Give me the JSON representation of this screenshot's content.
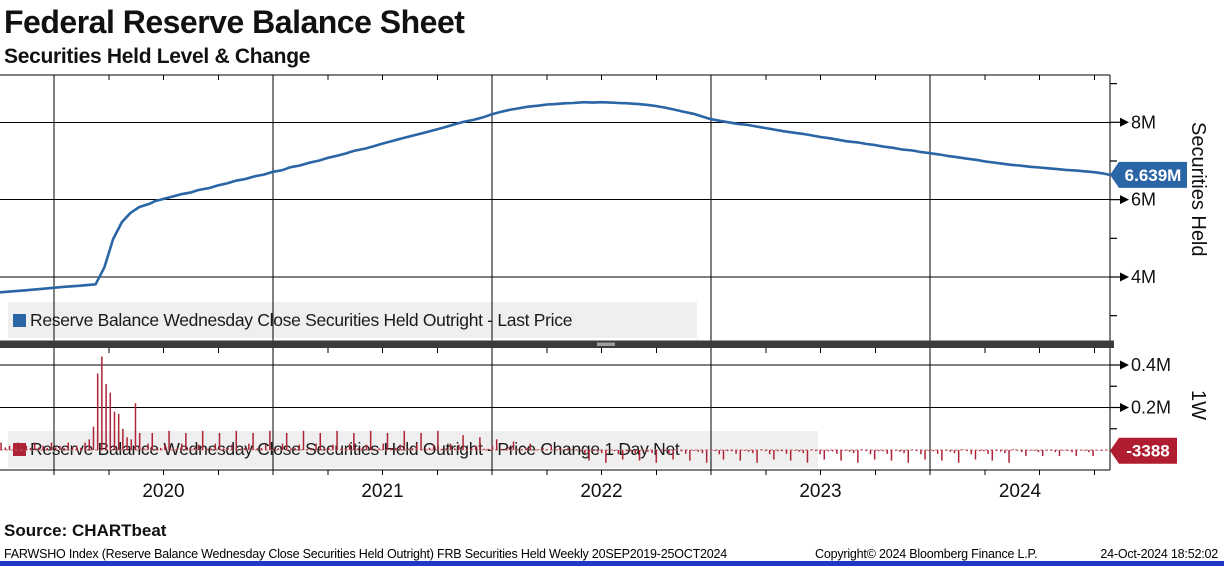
{
  "header": {
    "title": "Federal Reserve Balance Sheet",
    "subtitle": "Securities Held Level & Change"
  },
  "source_line": "Source: CHARTbeat",
  "footer": {
    "left": "FARWSHO Index (Reserve Balance Wednesday Close Securities Held Outright) FRB Securities Held  Weekly 20SEP2019-25OCT2024",
    "copyright": "Copyright© 2024 Bloomberg Finance L.P.",
    "timestamp": "24-Oct-2024 18:52:02"
  },
  "colors": {
    "line": "#2a65a5",
    "bar": "#ae2335",
    "badge_blue": "#2a65a5",
    "badge_red": "#b01d30",
    "zero_line": "#c06a72",
    "legend_bg": "#efefef",
    "grid": "#000000",
    "separator": "#3b3b3b",
    "separator_handle": "#9e9e9e",
    "taskbar": "#2038c8"
  },
  "top_panel": {
    "axis_title": "Securities Held",
    "legend_label": "Reserve Balance Wednesday Close Securities Held Outright - Last Price",
    "y_ticks": [
      {
        "label": "8M",
        "value": 8
      },
      {
        "label": "6M",
        "value": 6
      },
      {
        "label": "4M",
        "value": 4
      }
    ],
    "y_minor": [
      9,
      7,
      5,
      3
    ],
    "last_value_label": "6.639M",
    "last_value": 6.639
  },
  "bottom_panel": {
    "axis_title": "1W",
    "legend_label": "Reserve Balance Wednesday Close Securities Held Outright - Price Change 1 Day Net",
    "y_ticks": [
      {
        "label": "0.4M",
        "value": 0.4
      },
      {
        "label": "0.2M",
        "value": 0.2
      }
    ],
    "y_minor": [
      0.3,
      0.1
    ],
    "last_value_label": "-3388",
    "last_value": -0.0034
  },
  "x_axis": {
    "years": [
      "2020",
      "2021",
      "2022",
      "2023",
      "2024"
    ],
    "range_start": 2019.72,
    "range_end": 2024.82
  },
  "chart_data": [
    {
      "type": "line",
      "name": "Reserve Balance Wednesday Close Securities Held Outright - Last Price",
      "units": "M (trillions USD)",
      "x_unit": "decimal_year",
      "ylim": [
        2.35,
        9.2
      ],
      "yticks": [
        4,
        6,
        8
      ],
      "points": [
        [
          2019.72,
          3.59
        ],
        [
          2019.79,
          3.62
        ],
        [
          2019.87,
          3.655
        ],
        [
          2019.96,
          3.7
        ],
        [
          2020.04,
          3.745
        ],
        [
          2020.12,
          3.775
        ],
        [
          2020.19,
          3.81
        ],
        [
          2020.23,
          4.25
        ],
        [
          2020.27,
          4.98
        ],
        [
          2020.31,
          5.42
        ],
        [
          2020.35,
          5.66
        ],
        [
          2020.39,
          5.81
        ],
        [
          2020.44,
          5.9
        ],
        [
          2020.46,
          5.96
        ],
        [
          2020.5,
          6.02
        ],
        [
          2020.54,
          6.08
        ],
        [
          2020.58,
          6.14
        ],
        [
          2020.62,
          6.18
        ],
        [
          2020.66,
          6.25
        ],
        [
          2020.71,
          6.3
        ],
        [
          2020.75,
          6.37
        ],
        [
          2020.79,
          6.42
        ],
        [
          2020.83,
          6.49
        ],
        [
          2020.87,
          6.53
        ],
        [
          2020.92,
          6.61
        ],
        [
          2020.96,
          6.65
        ],
        [
          2021.0,
          6.72
        ],
        [
          2021.04,
          6.76
        ],
        [
          2021.08,
          6.84
        ],
        [
          2021.12,
          6.88
        ],
        [
          2021.17,
          6.96
        ],
        [
          2021.21,
          7.01
        ],
        [
          2021.25,
          7.08
        ],
        [
          2021.29,
          7.13
        ],
        [
          2021.33,
          7.19
        ],
        [
          2021.37,
          7.26
        ],
        [
          2021.42,
          7.32
        ],
        [
          2021.46,
          7.38
        ],
        [
          2021.5,
          7.45
        ],
        [
          2021.54,
          7.51
        ],
        [
          2021.58,
          7.57
        ],
        [
          2021.62,
          7.63
        ],
        [
          2021.67,
          7.7
        ],
        [
          2021.71,
          7.76
        ],
        [
          2021.75,
          7.82
        ],
        [
          2021.79,
          7.88
        ],
        [
          2021.83,
          7.95
        ],
        [
          2021.87,
          8.01
        ],
        [
          2021.92,
          8.07
        ],
        [
          2021.96,
          8.13
        ],
        [
          2022.0,
          8.21
        ],
        [
          2022.04,
          8.27
        ],
        [
          2022.08,
          8.32
        ],
        [
          2022.12,
          8.36
        ],
        [
          2022.16,
          8.4
        ],
        [
          2022.21,
          8.43
        ],
        [
          2022.25,
          8.46
        ],
        [
          2022.29,
          8.47
        ],
        [
          2022.33,
          8.49
        ],
        [
          2022.37,
          8.5
        ],
        [
          2022.42,
          8.52
        ],
        [
          2022.46,
          8.51
        ],
        [
          2022.5,
          8.52
        ],
        [
          2022.54,
          8.51
        ],
        [
          2022.58,
          8.5
        ],
        [
          2022.62,
          8.49
        ],
        [
          2022.67,
          8.47
        ],
        [
          2022.71,
          8.45
        ],
        [
          2022.75,
          8.42
        ],
        [
          2022.79,
          8.38
        ],
        [
          2022.83,
          8.33
        ],
        [
          2022.87,
          8.28
        ],
        [
          2022.92,
          8.22
        ],
        [
          2022.96,
          8.15
        ],
        [
          2023.0,
          8.08
        ],
        [
          2023.04,
          8.04
        ],
        [
          2023.08,
          8.0
        ],
        [
          2023.12,
          7.96
        ],
        [
          2023.17,
          7.93
        ],
        [
          2023.21,
          7.89
        ],
        [
          2023.25,
          7.85
        ],
        [
          2023.29,
          7.81
        ],
        [
          2023.33,
          7.77
        ],
        [
          2023.37,
          7.74
        ],
        [
          2023.42,
          7.7
        ],
        [
          2023.46,
          7.66
        ],
        [
          2023.5,
          7.62
        ],
        [
          2023.54,
          7.59
        ],
        [
          2023.58,
          7.55
        ],
        [
          2023.62,
          7.51
        ],
        [
          2023.67,
          7.48
        ],
        [
          2023.71,
          7.44
        ],
        [
          2023.75,
          7.41
        ],
        [
          2023.79,
          7.37
        ],
        [
          2023.83,
          7.34
        ],
        [
          2023.87,
          7.3
        ],
        [
          2023.92,
          7.27
        ],
        [
          2023.96,
          7.23
        ],
        [
          2024.0,
          7.2
        ],
        [
          2024.04,
          7.17
        ],
        [
          2024.08,
          7.13
        ],
        [
          2024.12,
          7.1
        ],
        [
          2024.17,
          7.06
        ],
        [
          2024.21,
          7.03
        ],
        [
          2024.25,
          6.99
        ],
        [
          2024.29,
          6.96
        ],
        [
          2024.33,
          6.93
        ],
        [
          2024.37,
          6.9
        ],
        [
          2024.42,
          6.875
        ],
        [
          2024.46,
          6.85
        ],
        [
          2024.5,
          6.83
        ],
        [
          2024.54,
          6.81
        ],
        [
          2024.58,
          6.79
        ],
        [
          2024.62,
          6.77
        ],
        [
          2024.67,
          6.75
        ],
        [
          2024.71,
          6.73
        ],
        [
          2024.75,
          6.71
        ],
        [
          2024.79,
          6.68
        ],
        [
          2024.82,
          6.639
        ]
      ]
    },
    {
      "type": "bar",
      "name": "Reserve Balance Wednesday Close Securities Held Outright - Price Change 1 Day Net",
      "units": "M (trillions USD)",
      "x_start": 2019.72,
      "x_step_years": 0.019178,
      "ylim": [
        -0.095,
        0.47
      ],
      "yticks": [
        0.2,
        0.4
      ],
      "values": [
        0.02,
        0.01,
        0.035,
        0.012,
        0.02,
        0.01,
        0.035,
        0.012,
        0.02,
        0.01,
        0.035,
        0.012,
        0.02,
        0.01,
        0.035,
        0.012,
        0.02,
        0.01,
        0.035,
        0.012,
        0.02,
        0.01,
        0.035,
        0.05,
        0.11,
        0.36,
        0.44,
        0.31,
        0.27,
        0.18,
        0.17,
        0.1,
        0.06,
        0.05,
        0.22,
        0.08,
        0.008,
        0.03,
        0.08,
        0.008,
        0.01,
        0.025,
        0.09,
        0.006,
        0.008,
        0.03,
        0.08,
        0.008,
        0.01,
        0.025,
        0.09,
        0.006,
        0.008,
        0.03,
        0.08,
        0.008,
        0.01,
        0.025,
        0.09,
        0.006,
        0.008,
        0.03,
        0.08,
        0.008,
        0.01,
        0.025,
        0.09,
        0.006,
        0.008,
        0.03,
        0.08,
        0.008,
        0.01,
        0.025,
        0.09,
        0.006,
        0.008,
        0.03,
        0.08,
        0.008,
        0.01,
        0.025,
        0.09,
        0.006,
        0.008,
        0.03,
        0.08,
        0.008,
        0.01,
        0.025,
        0.09,
        0.006,
        0.008,
        0.03,
        0.08,
        0.008,
        0.01,
        0.025,
        0.09,
        0.006,
        0.008,
        0.03,
        0.08,
        0.008,
        0.01,
        0.025,
        0.09,
        0.006,
        0.008,
        0.03,
        0.008,
        0.025,
        0.07,
        0.006,
        0.008,
        0.02,
        0.06,
        0.006,
        0.006,
        0.018,
        0.05,
        0.005,
        0.005,
        0.015,
        0.04,
        0.004,
        0.004,
        0.01,
        0.03,
        0.003,
        0.002,
        0.01,
        0.004,
        0.02,
        0.002,
        0.008,
        0.001,
        0.012,
        0.003,
        0.001,
        -0.006,
        -0.018,
        -0.05,
        -0.004,
        -0.008,
        -0.015,
        -0.06,
        0.003,
        -0.005,
        -0.02,
        -0.045,
        -0.006,
        -0.006,
        -0.018,
        -0.05,
        -0.004,
        -0.008,
        -0.015,
        -0.06,
        0.003,
        -0.005,
        -0.02,
        -0.045,
        -0.006,
        -0.006,
        -0.018,
        -0.05,
        -0.004,
        -0.008,
        -0.015,
        -0.06,
        0.003,
        -0.005,
        -0.02,
        -0.045,
        -0.006,
        -0.006,
        -0.018,
        -0.05,
        -0.004,
        -0.008,
        -0.015,
        -0.06,
        0.003,
        -0.005,
        -0.02,
        -0.045,
        -0.006,
        -0.006,
        -0.018,
        -0.05,
        -0.004,
        -0.008,
        -0.015,
        -0.06,
        0.003,
        -0.005,
        -0.02,
        -0.045,
        -0.006,
        -0.006,
        -0.018,
        -0.05,
        -0.004,
        -0.008,
        -0.015,
        -0.06,
        0.003,
        -0.005,
        -0.02,
        -0.045,
        -0.006,
        -0.006,
        -0.018,
        -0.05,
        -0.004,
        -0.008,
        -0.015,
        -0.06,
        0.003,
        -0.005,
        -0.02,
        -0.045,
        -0.006,
        -0.006,
        -0.018,
        -0.05,
        -0.004,
        -0.008,
        -0.015,
        -0.06,
        0.003,
        -0.005,
        -0.02,
        -0.045,
        -0.006,
        -0.006,
        -0.018,
        -0.05,
        -0.004,
        -0.008,
        -0.015,
        -0.06,
        0.003,
        -0.004,
        -0.01,
        -0.028,
        -0.003,
        -0.004,
        -0.01,
        -0.028,
        -0.003,
        -0.004,
        -0.01,
        -0.028,
        -0.003,
        -0.004,
        -0.01,
        -0.028,
        -0.003,
        -0.004,
        -0.01,
        -0.028,
        -0.003,
        -0.004,
        -0.0034
      ]
    }
  ]
}
